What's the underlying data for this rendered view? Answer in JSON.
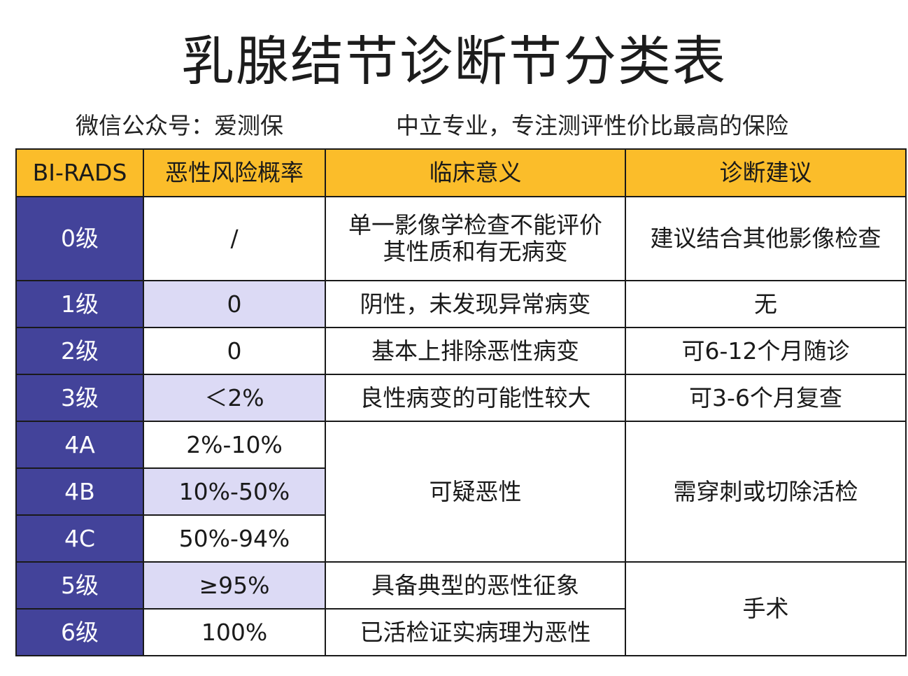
{
  "title": "乳腺结节诊断节分类表",
  "subtitle": {
    "left": "微信公众号：爱测保",
    "right": "中立专业，专注测评性价比最高的保险"
  },
  "table": {
    "headers": [
      "BI-RADS",
      "恶性风险概率",
      "临床意义",
      "诊断建议"
    ],
    "rows": [
      {
        "level": "0级",
        "risk": "/",
        "meaning_line1": "单一影像学检查不能评价",
        "meaning_line2": "其性质和有无病变",
        "advice": "建议结合其他影像检查"
      },
      {
        "level": "1级",
        "risk": "0",
        "meaning": "阴性，未发现异常病变",
        "advice": "无"
      },
      {
        "level": "2级",
        "risk": "0",
        "meaning": "基本上排除恶性病变",
        "advice": "可6-12个月随诊"
      },
      {
        "level": "3级",
        "risk": "＜2%",
        "meaning": "良性病变的可能性较大",
        "advice": "可3-6个月复查"
      },
      {
        "level": "4A",
        "risk": "2%-10%",
        "meaning": "可疑恶性",
        "advice": "需穿刺或切除活检"
      },
      {
        "level": "4B",
        "risk": "10%-50%"
      },
      {
        "level": "4C",
        "risk": "50%-94%"
      },
      {
        "level": "5级",
        "risk": "≥95%",
        "meaning": "具备典型的恶性征象",
        "advice": "手术"
      },
      {
        "level": "6级",
        "risk": "100%",
        "meaning": "已活检证实病理为恶性"
      }
    ]
  }
}
